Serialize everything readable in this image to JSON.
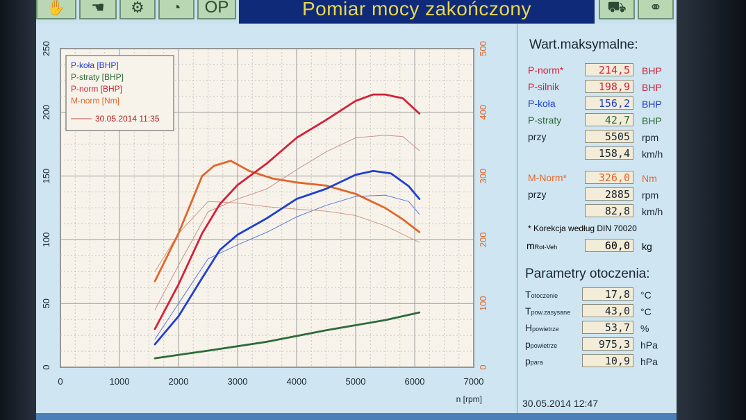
{
  "window": {
    "title": "Pomiar mocy zakończony",
    "toolbar_left_label": "OP",
    "footer_datetime": "30.05.2014   12:47"
  },
  "icons": [
    "hand-icon",
    "glove-icon",
    "engine-icon",
    "gauge-icon",
    "dyno-car-icon",
    "wheels-icon"
  ],
  "colors": {
    "p_kola": "#1f3fd0",
    "p_straty": "#2d6a3a",
    "p_norm": "#d61f3a",
    "m_norm": "#e0662a"
  },
  "max_values": {
    "title": "Wart.maksymalne:",
    "rows": [
      {
        "label": "P-norm*",
        "value": "214,5",
        "unit": "BHP"
      },
      {
        "label": "P-silnik",
        "value": "198,9",
        "unit": "BHP"
      },
      {
        "label": "P-koła",
        "value": "156,2",
        "unit": "BHP"
      },
      {
        "label": "P-straty",
        "value": "42,7",
        "unit": "BHP"
      },
      {
        "label": "przy",
        "value": "5505",
        "unit": "rpm"
      },
      {
        "label": "",
        "value": "158,4",
        "unit": "km/h"
      },
      {
        "label": "M-Norm*",
        "value": "326,0",
        "unit": "Nm"
      },
      {
        "label": "przy",
        "value": "2885",
        "unit": "rpm"
      },
      {
        "label": "",
        "value": "82,8",
        "unit": "km/h"
      }
    ],
    "correction_note": "* Korekcja według DIN 70020",
    "mrot_label": "m",
    "mrot_sub": "Rot-Veh",
    "mrot_value": "60,0",
    "mrot_unit": "kg"
  },
  "ambient": {
    "title": "Parametry otoczenia:",
    "rows": [
      {
        "label": "T",
        "sub": "otoczenie",
        "value": "17,8",
        "unit": "°C"
      },
      {
        "label": "T",
        "sub": "pow.zasysane",
        "value": "43,0",
        "unit": "°C"
      },
      {
        "label": "H",
        "sub": "powietrze",
        "value": "53,7",
        "unit": "%"
      },
      {
        "label": "p",
        "sub": "powietrze",
        "value": "975,3",
        "unit": "hPa"
      },
      {
        "label": "p",
        "sub": "para",
        "value": "10,9",
        "unit": "hPa"
      }
    ]
  },
  "chart_data": {
    "type": "line",
    "title": "",
    "xlabel": "n [rpm]",
    "ylabel": "",
    "xlim": [
      0,
      7000
    ],
    "ylim": [
      0,
      250
    ],
    "y2lim": [
      0,
      500
    ],
    "x_ticks": [
      "0",
      "1000",
      "2000",
      "3000",
      "4000",
      "5000",
      "6000",
      "7000"
    ],
    "y_ticks": [
      "0",
      "50",
      "100",
      "150",
      "200",
      "250"
    ],
    "y2_ticks": [
      "0",
      "100",
      "200",
      "300",
      "400",
      "500"
    ],
    "grid": true,
    "legend": {
      "position": "top-left",
      "entries": [
        "P-koła [BHP]",
        "P-straty [BHP]",
        "P-norm [BHP]",
        "M-norm [Nm]"
      ],
      "reference": "30.05.2014 11:35"
    },
    "series": [
      {
        "name": "P-koła [BHP]",
        "axis": "left",
        "color": "#1f3fd0",
        "x": [
          1600,
          2000,
          2400,
          2700,
          3000,
          3500,
          4000,
          4500,
          5000,
          5300,
          5600,
          5900,
          6080
        ],
        "y": [
          18,
          40,
          70,
          92,
          104,
          117,
          132,
          140,
          151,
          154,
          152,
          142,
          132
        ]
      },
      {
        "name": "P-straty [BHP]",
        "axis": "left",
        "color": "#2d6a3a",
        "x": [
          1600,
          2500,
          3500,
          4500,
          5500,
          6080
        ],
        "y": [
          7,
          13,
          20,
          29,
          37,
          43
        ]
      },
      {
        "name": "P-norm [BHP]",
        "axis": "left",
        "color": "#d61f3a",
        "x": [
          1600,
          2000,
          2400,
          2700,
          3000,
          3500,
          4000,
          4500,
          5000,
          5300,
          5500,
          5800,
          6080
        ],
        "y": [
          30,
          65,
          105,
          128,
          143,
          160,
          180,
          194,
          209,
          214,
          214,
          211,
          199
        ]
      },
      {
        "name": "M-norm [Nm]",
        "axis": "right",
        "color": "#e0662a",
        "x": [
          1600,
          2000,
          2400,
          2600,
          2885,
          3200,
          3600,
          4000,
          4500,
          5000,
          5500,
          5800,
          6080
        ],
        "y": [
          135,
          210,
          300,
          316,
          324,
          308,
          296,
          290,
          285,
          272,
          250,
          232,
          212
        ]
      },
      {
        "name": "P-silnik [BHP] (ref)",
        "axis": "left",
        "color": "#c89090",
        "x": [
          1600,
          2000,
          2500,
          3000,
          3500,
          4000,
          4500,
          5000,
          5500,
          5800,
          6080
        ],
        "y": [
          45,
          80,
          122,
          132,
          140,
          155,
          169,
          180,
          182,
          181,
          170
        ]
      },
      {
        "name": "P-koła [BHP] (ref)",
        "axis": "left",
        "color": "#5a7ae0",
        "x": [
          1600,
          2000,
          2500,
          3000,
          3500,
          4000,
          4500,
          5000,
          5500,
          5900,
          6080
        ],
        "y": [
          22,
          50,
          85,
          96,
          106,
          118,
          127,
          134,
          135,
          130,
          120
        ]
      },
      {
        "name": "M-norm [Nm] (ref)",
        "axis": "right",
        "color": "#d09a80",
        "x": [
          1600,
          2000,
          2500,
          3000,
          3500,
          4000,
          4500,
          5000,
          5500,
          5900,
          6080
        ],
        "y": [
          150,
          210,
          260,
          258,
          252,
          248,
          245,
          238,
          222,
          204,
          196
        ]
      }
    ]
  }
}
